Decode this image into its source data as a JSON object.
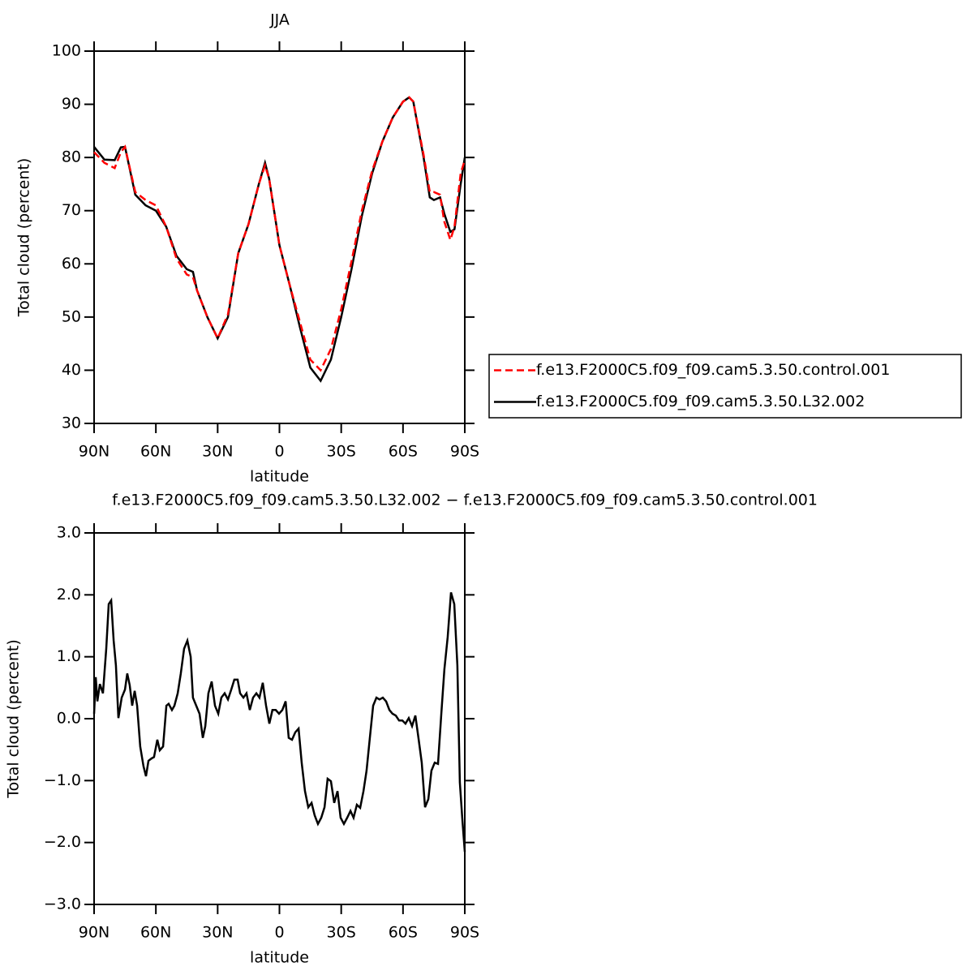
{
  "chart_data": [
    {
      "type": "line",
      "title": "JJA",
      "xlabel": "latitude",
      "ylabel": "Total cloud (percent)",
      "x": [
        90,
        85,
        80,
        77,
        75,
        70,
        65,
        60,
        55,
        50,
        45,
        42,
        40,
        35,
        30,
        25,
        20,
        15,
        10,
        7,
        5,
        0,
        -5,
        -10,
        -15,
        -20,
        -25,
        -30,
        -35,
        -40,
        -45,
        -50,
        -55,
        -60,
        -63,
        -65,
        -70,
        -73,
        -75,
        -78,
        -80,
        -83,
        -85,
        -88,
        -90
      ],
      "xlim": [
        90,
        -90
      ],
      "xticks": [
        {
          "value": 90,
          "label": "90N"
        },
        {
          "value": 60,
          "label": "60N"
        },
        {
          "value": 30,
          "label": "30N"
        },
        0,
        {
          "value": -30,
          "label": "30S"
        },
        {
          "value": -60,
          "label": "60S"
        },
        {
          "value": -90,
          "label": "90S"
        }
      ],
      "ylim": [
        30,
        100
      ],
      "yticks": [
        30,
        40,
        50,
        60,
        70,
        80,
        90,
        100
      ],
      "legend": "right",
      "series": [
        {
          "name": "f.e13.F2000C5.f09_f09.cam5.3.50.control.001",
          "color": "#ff0000",
          "dash": "dashed",
          "values": [
            81,
            79,
            78,
            81,
            82,
            73.5,
            72,
            71,
            67,
            61,
            58,
            57.5,
            55,
            50,
            46,
            50.5,
            62,
            67.5,
            75,
            78.5,
            76,
            63.5,
            56,
            49,
            42,
            40,
            44,
            51.5,
            60.5,
            70,
            77.5,
            83,
            87.5,
            90.5,
            91.3,
            90.5,
            80.5,
            73.5,
            73.5,
            73,
            68,
            64.5,
            67,
            77,
            79.5
          ]
        },
        {
          "name": "f.e13.F2000C5.f09_f09.cam5.3.50.L32.002",
          "color": "#000000",
          "dash": "solid",
          "values": [
            82,
            79.6,
            79.5,
            81.9,
            82,
            73,
            71,
            70,
            67,
            61.5,
            59,
            58.5,
            55,
            50,
            46,
            50,
            62,
            67.5,
            75,
            79,
            76,
            63.5,
            56,
            48,
            40.5,
            38,
            42,
            50,
            59,
            69,
            77,
            83,
            87.5,
            90.5,
            91.3,
            90.5,
            80,
            72.5,
            72,
            72.5,
            69.5,
            66,
            66.5,
            75,
            80
          ]
        }
      ]
    },
    {
      "type": "line",
      "title": "f.e13.F2000C5.f09_f09.cam5.3.50.L32.002 − f.e13.F2000C5.f09_f09.cam5.3.50.control.001",
      "xlabel": "latitude",
      "ylabel": "Total cloud (percent)",
      "x": [
        90,
        89.2,
        88.4,
        87.2,
        85.7,
        84.1,
        82.9,
        81.7,
        80.5,
        79.4,
        78.2,
        76.6,
        75,
        73.9,
        72.7,
        71.5,
        70.3,
        69.1,
        67.6,
        66,
        64.8,
        63.6,
        62,
        60.9,
        59.3,
        58.1,
        56.5,
        54.9,
        53.8,
        52.2,
        51,
        49.4,
        47.9,
        46.3,
        44.7,
        43.1,
        42,
        40.4,
        38.8,
        37.2,
        36,
        34.5,
        32.9,
        31.3,
        29.7,
        28.2,
        26.6,
        25,
        23.4,
        21.9,
        20.3,
        19.1,
        17.5,
        16,
        14.4,
        12.8,
        11.2,
        9.7,
        8.1,
        6.5,
        4.9,
        3.4,
        1.8,
        0.2,
        -1.4,
        -3,
        -4.5,
        -6.1,
        -7.7,
        -9.3,
        -10.8,
        -12.4,
        -14,
        -15.6,
        -17.1,
        -18.7,
        -20.3,
        -21.9,
        -23.4,
        -25,
        -26.6,
        -28.2,
        -29.7,
        -31.3,
        -32.9,
        -34.5,
        -36,
        -37.6,
        -39.2,
        -40.8,
        -42.3,
        -43.9,
        -45.5,
        -47.1,
        -48.6,
        -50.2,
        -51.8,
        -53.4,
        -54.9,
        -56.5,
        -58.1,
        -59.7,
        -61.2,
        -62.8,
        -64.4,
        -66,
        -67.5,
        -69.1,
        -70.7,
        -72.3,
        -73.8,
        -75.4,
        -77,
        -78.6,
        -80.1,
        -81.7,
        -83.3,
        -84.9,
        -86.4,
        -87.6,
        -88.8,
        -90
      ],
      "values": [
        0.08,
        0.67,
        0.28,
        0.56,
        0.41,
        1.13,
        1.85,
        1.91,
        1.26,
        0.86,
        0.01,
        0.34,
        0.47,
        0.73,
        0.54,
        0.21,
        0.45,
        0.21,
        -0.45,
        -0.77,
        -0.93,
        -0.68,
        -0.64,
        -0.62,
        -0.34,
        -0.51,
        -0.45,
        0.21,
        0.24,
        0.14,
        0.21,
        0.41,
        0.73,
        1.13,
        1.26,
        1.0,
        0.34,
        0.21,
        0.08,
        -0.31,
        -0.12,
        0.41,
        0.6,
        0.21,
        0.08,
        0.34,
        0.41,
        0.31,
        0.47,
        0.63,
        0.63,
        0.41,
        0.34,
        0.41,
        0.14,
        0.34,
        0.41,
        0.34,
        0.58,
        0.21,
        -0.08,
        0.14,
        0.14,
        0.08,
        0.14,
        0.28,
        -0.31,
        -0.34,
        -0.22,
        -0.16,
        -0.71,
        -1.17,
        -1.43,
        -1.36,
        -1.56,
        -1.7,
        -1.6,
        -1.43,
        -0.97,
        -1.01,
        -1.36,
        -1.17,
        -1.6,
        -1.7,
        -1.6,
        -1.49,
        -1.6,
        -1.39,
        -1.44,
        -1.17,
        -0.84,
        -0.31,
        0.21,
        0.34,
        0.31,
        0.34,
        0.28,
        0.14,
        0.08,
        0.05,
        -0.03,
        -0.03,
        -0.08,
        0.01,
        -0.12,
        0.05,
        -0.31,
        -0.71,
        -1.43,
        -1.3,
        -0.84,
        -0.71,
        -0.73,
        0.08,
        0.8,
        1.32,
        2.04,
        1.85,
        0.86,
        -1.03,
        -1.62,
        -2.15
      ],
      "color": "#000000",
      "xlim": [
        90,
        -90
      ],
      "xticks": [
        {
          "value": 90,
          "label": "90N"
        },
        {
          "value": 60,
          "label": "60N"
        },
        {
          "value": 30,
          "label": "30N"
        },
        0,
        {
          "value": -30,
          "label": "30S"
        },
        {
          "value": -60,
          "label": "60S"
        },
        {
          "value": -90,
          "label": "90S"
        }
      ],
      "ylim": [
        -3,
        3
      ],
      "yticks": [
        {
          "value": -3,
          "label": "−3.0"
        },
        {
          "value": -2,
          "label": "−2.0"
        },
        {
          "value": -1,
          "label": "−1.0"
        },
        {
          "value": 0,
          "label": "0.0"
        },
        {
          "value": 1,
          "label": "1.0"
        },
        {
          "value": 2,
          "label": "2.0"
        },
        {
          "value": 3,
          "label": "3.0"
        }
      ]
    }
  ]
}
